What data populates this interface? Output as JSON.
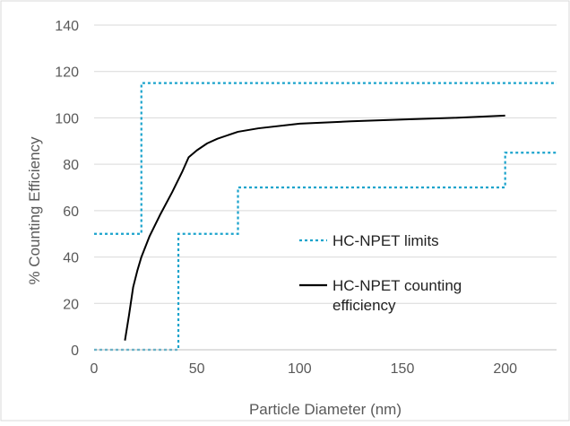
{
  "chart_data": {
    "type": "line",
    "title": "",
    "xlabel": "Particle Diameter (nm)",
    "ylabel": "% Counting Efficiency",
    "xlim": [
      0,
      225
    ],
    "ylim": [
      0,
      140
    ],
    "x_ticks": [
      0,
      50,
      100,
      150,
      200
    ],
    "y_ticks": [
      0,
      20,
      40,
      60,
      80,
      100,
      120,
      140
    ],
    "grid": {
      "horizontal": true,
      "vertical": false
    },
    "legend_position": "inside-right",
    "series": [
      {
        "name": "HC-NPET limits",
        "style": "dotted",
        "color": "#1aa3cc",
        "segments": [
          {
            "part": "upper",
            "x": [
              0,
              23,
              23,
              225
            ],
            "y": [
              50,
              50,
              115,
              115
            ]
          },
          {
            "part": "lower",
            "x": [
              0,
              41,
              41,
              70,
              70,
              200,
              200,
              225
            ],
            "y": [
              0,
              0,
              50,
              50,
              70,
              70,
              85,
              85
            ]
          }
        ]
      },
      {
        "name": "HC-NPET counting\nefficiency",
        "style": "solid",
        "color": "#000000",
        "x": [
          15,
          17,
          19,
          21,
          23,
          27,
          32,
          38,
          43,
          46,
          50,
          55,
          60,
          70,
          80,
          100,
          125,
          150,
          175,
          200
        ],
        "y": [
          4,
          15,
          27,
          34,
          40,
          49,
          58,
          68,
          77,
          83,
          86,
          89,
          91,
          94,
          95.5,
          97.5,
          98.5,
          99.3,
          100,
          101
        ]
      }
    ]
  }
}
